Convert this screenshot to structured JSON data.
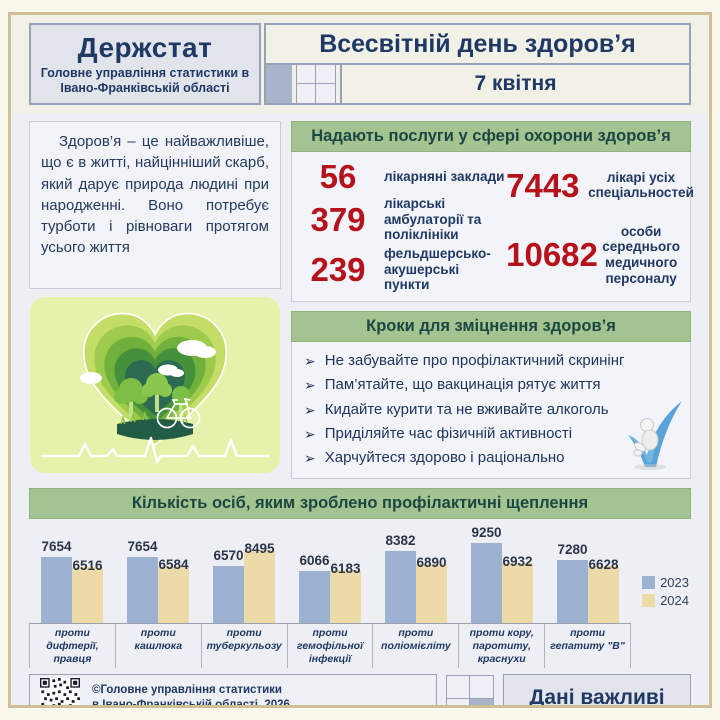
{
  "header": {
    "logo_title": "Держстат",
    "logo_subtitle": "Головне управління статистики в Івано-Франківській області",
    "title": "Всесвітній день здоров’я",
    "date": "7 квітня"
  },
  "intro": {
    "text": "Здоров’я – це найважливіше, що є в житті, найцінніший скарб, який дарує природа людині при народженні. Воно потребує турботи і рівноваги протягом усього життя"
  },
  "services": {
    "title": "Надають послуги у сфері охорони здоров’я",
    "left_stats": [
      {
        "value": "56",
        "label": "лікарняні заклади"
      },
      {
        "value": "379",
        "label": "лікарські амбулаторії та поліклініки"
      },
      {
        "value": "239",
        "label": "фельдшерсько-акушерські пункти"
      }
    ],
    "right_stats": [
      {
        "value": "7443",
        "label": "лікарі усіх спеціальностей"
      },
      {
        "value": "10682",
        "label": "особи середнього медичного персоналу"
      }
    ]
  },
  "steps": {
    "title": "Кроки для зміцнення здоров’я",
    "bullet": "➢",
    "items": [
      "Не забувайте про профілактичний скринінг",
      "Пам’ятайте, що вакцинація рятує життя",
      "Кидайте курити та не вживайте алкоголь",
      "Приділяйте час фізичній активності",
      "Харчуйтеся здорово і раціонально"
    ]
  },
  "chart_data": {
    "type": "bar",
    "title": "Кількість осіб, яким зроблено профілактичні щеплення",
    "categories": [
      "проти дифтерії, правця",
      "проти кашлюка",
      "проти туберкульозу",
      "проти гемофільної інфекції",
      "проти поліомієліту",
      "проти кору, паротиту, краснухи",
      "проти гепатиту \"В\""
    ],
    "series": [
      {
        "name": "2023",
        "color": "#9db2d1",
        "values": [
          7654,
          7654,
          6570,
          6066,
          8382,
          9250,
          7280
        ]
      },
      {
        "name": "2024",
        "color": "#ecdaa9",
        "values": [
          6516,
          6584,
          8495,
          6183,
          6890,
          6932,
          6628
        ]
      }
    ],
    "xlabel": "",
    "ylabel": "",
    "ylim": [
      0,
      9500
    ],
    "grid": false,
    "legend_position": "right"
  },
  "footer": {
    "copyright_line1": "©Головне управління статистики",
    "copyright_line2": "в Івано-Франківській області, 2026",
    "slogan": "Дані важливі"
  },
  "colors": {
    "accent_red": "#b6121b",
    "navy": "#1f3864",
    "green_header": "#a3c391",
    "bar_2023": "#9db2d1",
    "bar_2024": "#ecdaa9",
    "frame_tan": "#cdc193"
  }
}
